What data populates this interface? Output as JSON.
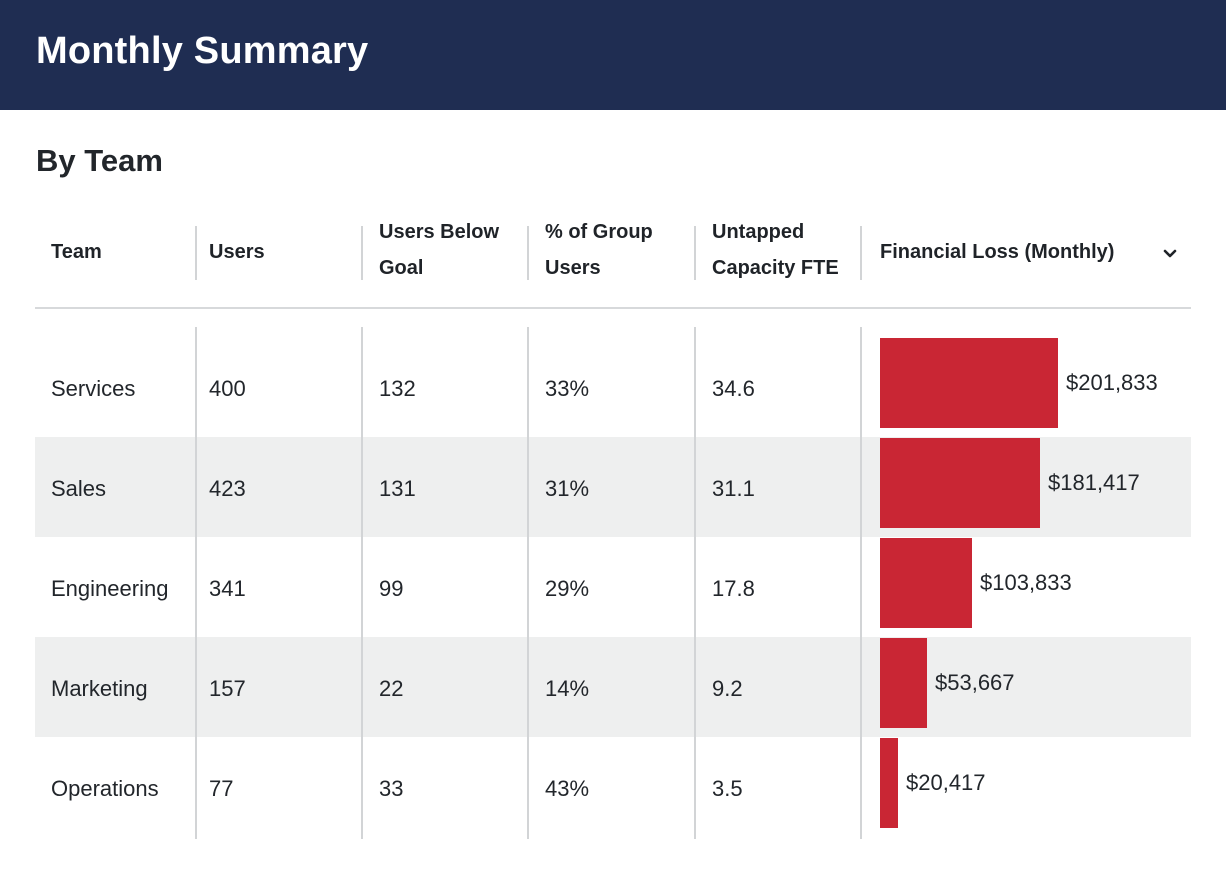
{
  "header": {
    "title": "Monthly Summary"
  },
  "section": {
    "title": "By Team"
  },
  "table": {
    "columns": [
      {
        "line1": "Team",
        "line2": ""
      },
      {
        "line1": "Users",
        "line2": ""
      },
      {
        "line1": "Users Below",
        "line2": "Goal"
      },
      {
        "line1": "% of Group",
        "line2": "Users"
      },
      {
        "line1": "Untapped",
        "line2": "Capacity FTE"
      },
      {
        "line1": "Financial Loss (Monthly)",
        "line2": ""
      }
    ],
    "sort_icon": "chevron-down-icon",
    "rows": [
      {
        "team": "Services",
        "users": "400",
        "below_goal": "132",
        "pct": "33%",
        "fte": "34.6",
        "loss_label": "$201,833",
        "loss_value": 201833
      },
      {
        "team": "Sales",
        "users": "423",
        "below_goal": "131",
        "pct": "31%",
        "fte": "31.1",
        "loss_label": "$181,417",
        "loss_value": 181417
      },
      {
        "team": "Engineering",
        "users": "341",
        "below_goal": "99",
        "pct": "29%",
        "fte": "17.8",
        "loss_label": "$103,833",
        "loss_value": 103833
      },
      {
        "team": "Marketing",
        "users": "157",
        "below_goal": "22",
        "pct": "14%",
        "fte": "9.2",
        "loss_label": "$53,667",
        "loss_value": 53667
      },
      {
        "team": "Operations",
        "users": "77",
        "below_goal": "33",
        "pct": "43%",
        "fte": "3.5",
        "loss_label": "$20,417",
        "loss_value": 20417
      }
    ]
  },
  "colors": {
    "header_bg": "#1f2d52",
    "bar": "#c92634",
    "row_shade": "#eeefef"
  }
}
